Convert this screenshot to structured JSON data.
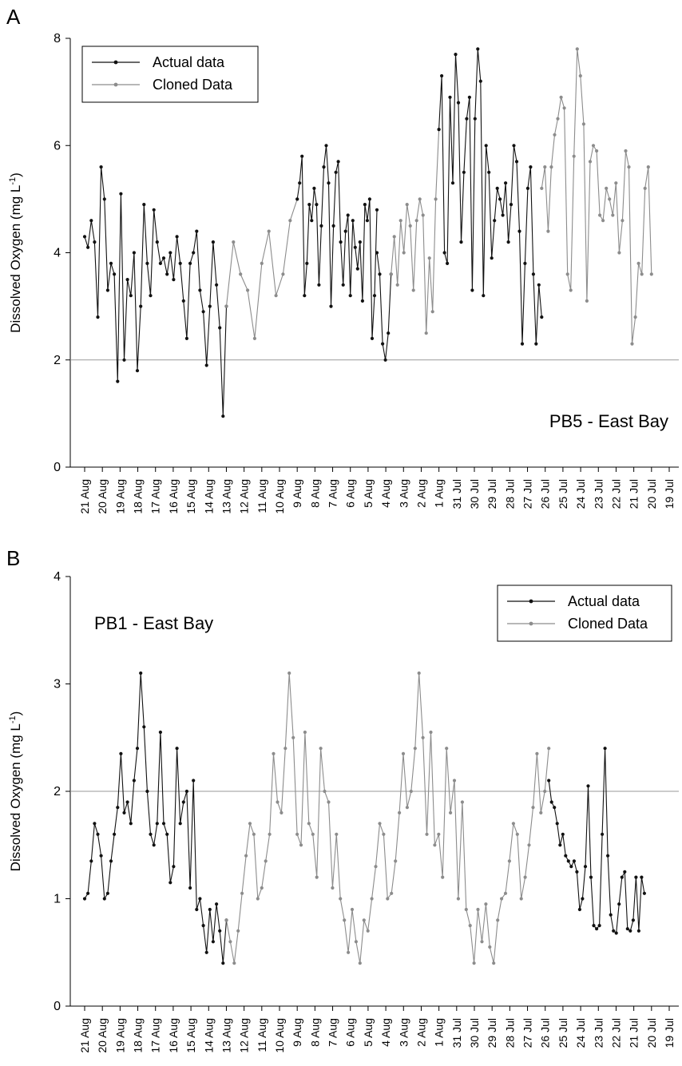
{
  "chart_data": [
    {
      "type": "line",
      "panel": "A",
      "annotation": "PB5 - East Bay",
      "ylabel_main": "Dissolved Oxygen (mg L",
      "ylabel_sup": "-1",
      "ylabel_close": ")",
      "ylim": [
        0,
        8
      ],
      "yticks": [
        0,
        2,
        4,
        6,
        8
      ],
      "reference_line": 2,
      "legend": {
        "position": "top-left",
        "items": [
          "Actual data",
          "Cloned Data"
        ]
      },
      "colors": {
        "actual": "#111111",
        "cloned": "#8c8c8c",
        "reference": "#999999"
      },
      "x_tick_labels": [
        "21 Aug",
        "20 Aug",
        "19 Aug",
        "18 Aug",
        "17 Aug",
        "16 Aug",
        "15 Aug",
        "14 Aug",
        "13 Aug",
        "12 Aug",
        "11 Aug",
        "10 Aug",
        "9 Aug",
        "8 Aug",
        "7 Aug",
        "6 Aug",
        "5 Aug",
        "4 Aug",
        "3 Aug",
        "2 Aug",
        "1 Aug",
        "31 Jul",
        "30 Jul",
        "29 Jul",
        "28 Jul",
        "27 Jul",
        "26 Jul",
        "25 Jul",
        "24 Jul",
        "23 Jul",
        "22 Jul",
        "21 Jul",
        "20 Jul",
        "19 Jul"
      ],
      "series": [
        {
          "name": "Actual data",
          "x_range": [
            0,
            8.0
          ],
          "values": [
            4.3,
            4.1,
            4.6,
            4.2,
            2.8,
            5.6,
            5.0,
            3.3,
            3.8,
            3.6,
            1.6,
            5.1,
            2.0,
            3.5,
            3.2,
            4.0,
            1.8,
            3.0,
            4.9,
            3.8,
            3.2,
            4.8,
            4.2,
            3.8,
            3.9,
            3.6,
            4.0,
            3.5,
            4.3,
            3.8,
            3.1,
            2.4,
            3.8,
            4.0,
            4.4,
            3.3,
            2.9,
            1.9,
            3.0,
            4.2,
            3.4,
            2.6,
            0.95,
            3.0
          ]
        },
        {
          "name": "Cloned Data",
          "x_range": [
            8.0,
            12.0
          ],
          "values": [
            3.0,
            4.2,
            3.6,
            3.3,
            2.4,
            3.8,
            4.4,
            3.2,
            3.6,
            4.6,
            5.0
          ]
        },
        {
          "name": "Actual data",
          "x_range": [
            12.0,
            16.5
          ],
          "values": [
            5.0,
            5.3,
            5.8,
            3.2,
            3.8,
            4.9,
            4.6,
            5.2,
            4.9,
            3.4,
            4.5,
            5.6,
            6.0,
            5.3,
            3.0,
            4.5,
            5.5,
            5.7,
            4.2,
            3.4,
            4.4,
            4.7,
            3.2,
            4.6,
            4.1,
            3.7,
            4.2,
            3.1,
            4.9,
            4.6,
            5.0,
            2.4,
            3.2,
            4.8
          ]
        },
        {
          "name": "Actual data",
          "x_range": [
            16.5,
            17.3
          ],
          "values": [
            4.0,
            3.6,
            2.3,
            2.0,
            2.5,
            3.6
          ]
        },
        {
          "name": "Cloned Data",
          "x_range": [
            17.3,
            20.0
          ],
          "values": [
            3.6,
            4.3,
            3.4,
            4.6,
            4.0,
            4.9,
            4.5,
            3.3,
            4.6,
            5.0,
            4.7,
            2.5,
            3.9,
            2.9,
            5.0,
            6.3
          ]
        },
        {
          "name": "Actual data",
          "x_range": [
            20.0,
            25.8
          ],
          "values": [
            6.3,
            7.3,
            4.0,
            3.8,
            6.9,
            5.3,
            7.7,
            6.8,
            4.2,
            5.5,
            6.5,
            6.9,
            3.3,
            6.5,
            7.8,
            7.2,
            3.2,
            6.0,
            5.5,
            3.9,
            4.6,
            5.2,
            5.0,
            4.7,
            5.3,
            4.2,
            4.9,
            6.0,
            5.7,
            4.4,
            2.3,
            3.8,
            5.2,
            5.6,
            3.6,
            2.3,
            3.4,
            2.8
          ]
        },
        {
          "name": "Cloned Data",
          "x_range": [
            25.8,
            32.0
          ],
          "values": [
            5.2,
            5.6,
            4.4,
            5.6,
            6.2,
            6.5,
            6.9,
            6.7,
            3.6,
            3.3,
            5.8,
            7.8,
            7.3,
            6.4,
            3.1,
            5.7,
            6.0,
            5.9,
            4.7,
            4.6,
            5.2,
            5.0,
            4.7,
            5.3,
            4.0,
            4.6,
            5.9,
            5.6,
            2.3,
            2.8,
            3.8,
            3.6,
            5.2,
            5.6,
            3.6
          ]
        }
      ]
    },
    {
      "type": "line",
      "panel": "B",
      "annotation": "PB1 - East Bay",
      "ylabel_main": "Dissolved Oxygen (mg L",
      "ylabel_sup": "-1",
      "ylabel_close": ")",
      "ylim": [
        0,
        4
      ],
      "yticks": [
        0,
        1,
        2,
        3,
        4
      ],
      "reference_line": 2,
      "legend": {
        "position": "top-right",
        "items": [
          "Actual data",
          "Cloned Data"
        ]
      },
      "colors": {
        "actual": "#111111",
        "cloned": "#8c8c8c",
        "reference": "#999999"
      },
      "x_tick_labels": [
        "21 Aug",
        "20 Aug",
        "19 Aug",
        "18 Aug",
        "17 Aug",
        "16 Aug",
        "15 Aug",
        "14 Aug",
        "13 Aug",
        "12 Aug",
        "11 Aug",
        "10 Aug",
        "9 Aug",
        "8 Aug",
        "7 Aug",
        "6 Aug",
        "5 Aug",
        "4 Aug",
        "3 Aug",
        "2 Aug",
        "1 Aug",
        "31 Jul",
        "30 Jul",
        "29 Jul",
        "28 Jul",
        "27 Jul",
        "26 Jul",
        "25 Jul",
        "24 Jul",
        "23 Jul",
        "22 Jul",
        "21 Jul",
        "20 Jul",
        "19 Jul"
      ],
      "series": [
        {
          "name": "Actual data",
          "x_range": [
            0,
            8.0
          ],
          "values": [
            1.0,
            1.05,
            1.35,
            1.7,
            1.6,
            1.4,
            1.0,
            1.05,
            1.35,
            1.6,
            1.85,
            2.35,
            1.8,
            1.9,
            1.7,
            2.1,
            2.4,
            3.1,
            2.6,
            2.0,
            1.6,
            1.5,
            1.7,
            2.55,
            1.7,
            1.6,
            1.15,
            1.3,
            2.4,
            1.7,
            1.9,
            2.0,
            1.1,
            2.1,
            0.9,
            1.0,
            0.75,
            0.5,
            0.9,
            0.6,
            0.95,
            0.7,
            0.4,
            0.8
          ]
        },
        {
          "name": "Cloned Data",
          "x_range": [
            8.0,
            26.2
          ],
          "values": [
            0.8,
            0.6,
            0.4,
            0.7,
            1.05,
            1.4,
            1.7,
            1.6,
            1.0,
            1.1,
            1.35,
            1.6,
            2.35,
            1.9,
            1.8,
            2.4,
            3.1,
            2.5,
            1.6,
            1.5,
            2.55,
            1.7,
            1.6,
            1.2,
            2.4,
            2.0,
            1.9,
            1.1,
            1.6,
            1.0,
            0.8,
            0.5,
            0.9,
            0.6,
            0.4,
            0.8,
            0.7,
            1.0,
            1.3,
            1.7,
            1.6,
            1.0,
            1.05,
            1.35,
            1.8,
            2.35,
            1.85,
            2.0,
            2.4,
            3.1,
            2.5,
            1.6,
            2.55,
            1.5,
            1.6,
            1.2,
            2.4,
            1.8,
            2.1,
            1.0,
            1.9,
            0.9,
            0.75,
            0.4,
            0.9,
            0.6,
            0.95,
            0.55,
            0.4,
            0.8,
            1.0,
            1.05,
            1.35,
            1.7,
            1.6,
            1.0,
            1.2,
            1.5,
            1.85,
            2.35,
            1.8,
            2.0,
            2.4
          ]
        },
        {
          "name": "Actual data",
          "x_range": [
            26.2,
            31.6
          ],
          "values": [
            2.1,
            1.9,
            1.85,
            1.7,
            1.5,
            1.6,
            1.4,
            1.35,
            1.3,
            1.35,
            1.25,
            0.9,
            1.0,
            1.3,
            2.05,
            1.2,
            0.75,
            0.72,
            0.75,
            1.6,
            2.4,
            1.4,
            0.85,
            0.7,
            0.68,
            0.95,
            1.2,
            1.25,
            0.72,
            0.7,
            0.8,
            1.2,
            0.7,
            1.2,
            1.05
          ]
        }
      ]
    }
  ]
}
